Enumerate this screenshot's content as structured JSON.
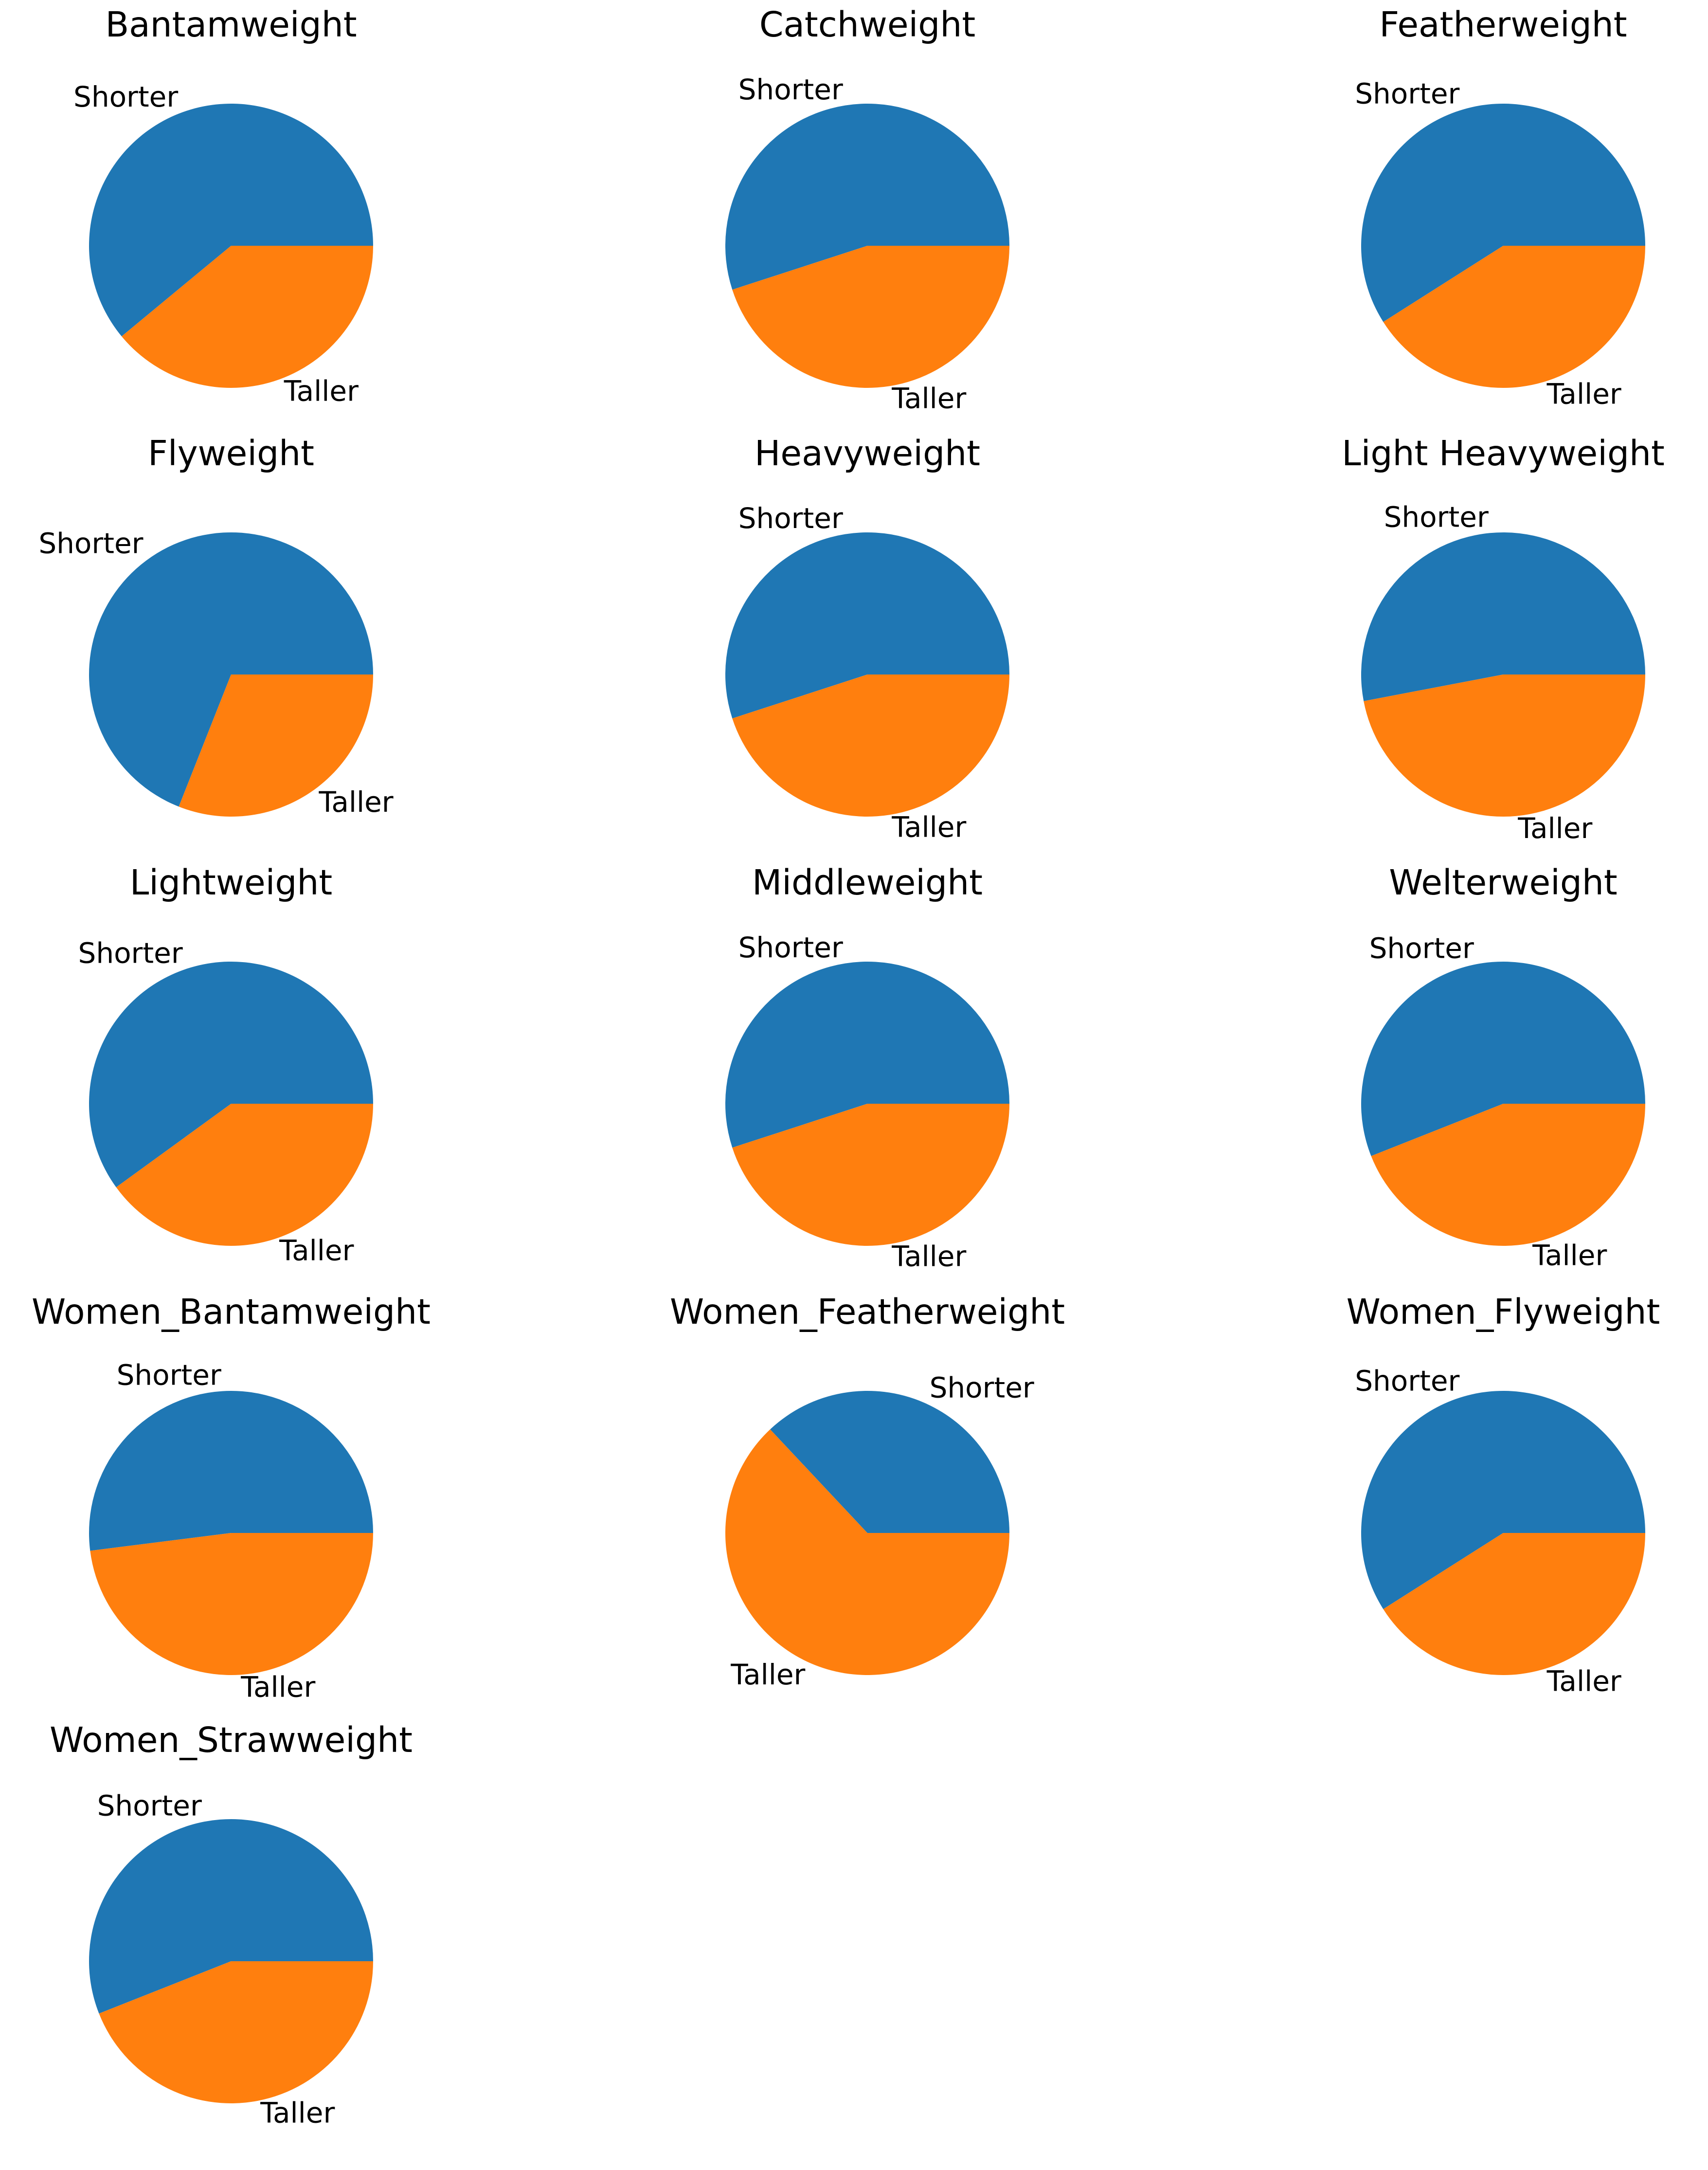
{
  "chart_data": [
    {
      "type": "pie",
      "title": "Bantamweight",
      "labels": [
        "Shorter",
        "Taller"
      ],
      "values": [
        61,
        39
      ]
    },
    {
      "type": "pie",
      "title": "Catchweight",
      "labels": [
        "Shorter",
        "Taller"
      ],
      "values": [
        55,
        45
      ]
    },
    {
      "type": "pie",
      "title": "Featherweight",
      "labels": [
        "Shorter",
        "Taller"
      ],
      "values": [
        59,
        41
      ]
    },
    {
      "type": "pie",
      "title": "Flyweight",
      "labels": [
        "Shorter",
        "Taller"
      ],
      "values": [
        69,
        31
      ]
    },
    {
      "type": "pie",
      "title": "Heavyweight",
      "labels": [
        "Shorter",
        "Taller"
      ],
      "values": [
        55,
        45
      ]
    },
    {
      "type": "pie",
      "title": "Light Heavyweight",
      "labels": [
        "Shorter",
        "Taller"
      ],
      "values": [
        53,
        47
      ]
    },
    {
      "type": "pie",
      "title": "Lightweight",
      "labels": [
        "Shorter",
        "Taller"
      ],
      "values": [
        60,
        40
      ]
    },
    {
      "type": "pie",
      "title": "Middleweight",
      "labels": [
        "Shorter",
        "Taller"
      ],
      "values": [
        55,
        45
      ]
    },
    {
      "type": "pie",
      "title": "Welterweight",
      "labels": [
        "Shorter",
        "Taller"
      ],
      "values": [
        56,
        44
      ]
    },
    {
      "type": "pie",
      "title": "Women_Bantamweight",
      "labels": [
        "Shorter",
        "Taller"
      ],
      "values": [
        52,
        48
      ]
    },
    {
      "type": "pie",
      "title": "Women_Featherweight",
      "labels": [
        "Shorter",
        "Taller"
      ],
      "values": [
        37,
        63
      ]
    },
    {
      "type": "pie",
      "title": "Women_Flyweight",
      "labels": [
        "Shorter",
        "Taller"
      ],
      "values": [
        59,
        41
      ]
    },
    {
      "type": "pie",
      "title": "Women_Strawweight",
      "labels": [
        "Shorter",
        "Taller"
      ],
      "values": [
        56,
        44
      ]
    }
  ],
  "colors": {
    "Shorter": "#1f77b4",
    "Taller": "#ff7f0e"
  }
}
